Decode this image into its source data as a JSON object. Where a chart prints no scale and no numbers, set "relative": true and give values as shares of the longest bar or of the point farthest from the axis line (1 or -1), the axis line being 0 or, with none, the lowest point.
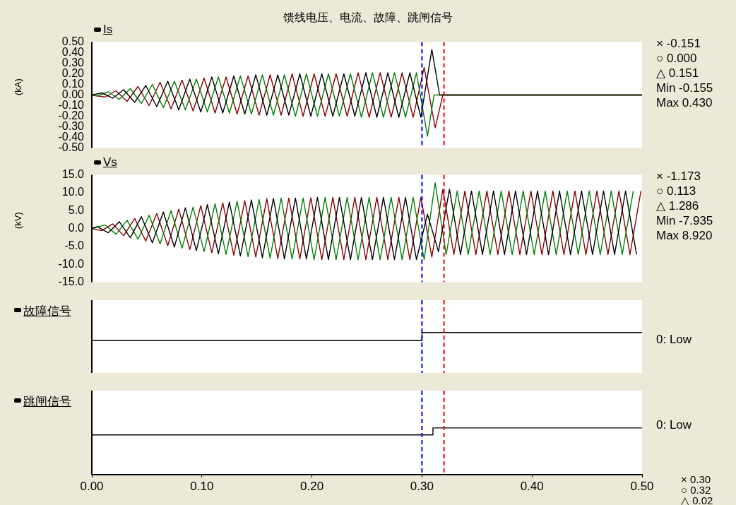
{
  "chart_data": [
    {
      "type": "line",
      "title": "馈线电压、电流、故障、跳闸信号",
      "subtitle": "Is",
      "ylabel": "(kA)",
      "marker": "none",
      "line_style": "solid",
      "grid": false,
      "legend": false,
      "tick_labels": "y",
      "xlim": [
        0,
        0.5
      ],
      "ylim": [
        -0.5,
        0.5
      ],
      "yticks": [
        {
          "value": 0.5,
          "label": "0.50"
        },
        {
          "value": 0.4,
          "label": "0.40"
        },
        {
          "value": 0.3,
          "label": "0.30"
        },
        {
          "value": 0.2,
          "label": "0.20"
        },
        {
          "value": 0.1,
          "label": "0.10"
        },
        {
          "value": 0,
          "label": "0.00"
        },
        {
          "value": -0.1,
          "label": "-0.10"
        },
        {
          "value": -0.2,
          "label": "-0.20"
        },
        {
          "value": -0.3,
          "label": "-0.30"
        },
        {
          "value": -0.4,
          "label": "-0.40"
        },
        {
          "value": -0.5,
          "label": "-0.50"
        }
      ],
      "series": [
        {
          "color": "#000000",
          "x": [
            0,
            0.009,
            0.019,
            0.029,
            0.039,
            0.049,
            0.059,
            0.069,
            0.079,
            0.089,
            0.099,
            0.109,
            0.119,
            0.129,
            0.139,
            0.149,
            0.159,
            0.169,
            0.179,
            0.189,
            0.199,
            0.209,
            0.219,
            0.229,
            0.239,
            0.249,
            0.259,
            0.269,
            0.279,
            0.289,
            0.299,
            0.309,
            0.316,
            0.5
          ],
          "values": [
            0,
            0.02,
            -0.03,
            0.05,
            -0.07,
            0.09,
            -0.11,
            0.13,
            -0.14,
            0.15,
            -0.16,
            0.17,
            -0.17,
            0.18,
            -0.18,
            0.19,
            -0.19,
            0.19,
            -0.19,
            0.2,
            -0.2,
            0.2,
            -0.2,
            0.2,
            -0.2,
            0.21,
            -0.21,
            0.21,
            -0.21,
            0.21,
            -0.21,
            0.43,
            0,
            0
          ]
        },
        {
          "color": "#008000",
          "x": [
            0,
            0.005,
            0.015,
            0.025,
            0.035,
            0.045,
            0.055,
            0.065,
            0.075,
            0.085,
            0.095,
            0.105,
            0.115,
            0.125,
            0.135,
            0.145,
            0.155,
            0.165,
            0.175,
            0.185,
            0.195,
            0.205,
            0.215,
            0.225,
            0.235,
            0.245,
            0.255,
            0.265,
            0.275,
            0.285,
            0.295,
            0.305,
            0.311,
            0.5
          ],
          "values": [
            0,
            -0.01,
            0.03,
            -0.04,
            0.06,
            -0.08,
            0.1,
            -0.12,
            0.13,
            -0.14,
            0.15,
            -0.16,
            0.17,
            -0.17,
            0.18,
            -0.18,
            0.19,
            -0.19,
            0.19,
            -0.2,
            0.2,
            -0.2,
            0.2,
            -0.2,
            0.2,
            -0.21,
            0.21,
            -0.21,
            0.21,
            -0.21,
            0.21,
            -0.39,
            0,
            0
          ]
        },
        {
          "color": "#8b0000",
          "x": [
            0,
            0.012,
            0.022,
            0.032,
            0.042,
            0.052,
            0.062,
            0.072,
            0.082,
            0.092,
            0.102,
            0.112,
            0.122,
            0.132,
            0.142,
            0.152,
            0.162,
            0.172,
            0.182,
            0.192,
            0.202,
            0.212,
            0.222,
            0.232,
            0.242,
            0.252,
            0.262,
            0.272,
            0.282,
            0.292,
            0.302,
            0.312,
            0.319,
            0.5
          ],
          "values": [
            0,
            -0.02,
            0.04,
            -0.06,
            0.08,
            -0.1,
            0.12,
            -0.13,
            0.14,
            -0.15,
            0.16,
            -0.17,
            0.17,
            -0.18,
            0.18,
            -0.19,
            0.19,
            -0.19,
            0.2,
            -0.2,
            0.2,
            -0.2,
            0.2,
            -0.2,
            0.21,
            -0.21,
            0.21,
            -0.21,
            0.21,
            -0.21,
            0.26,
            -0.31,
            0,
            0
          ]
        }
      ],
      "ref_lines": [
        {
          "axis": "x",
          "value": 0.3,
          "color": "#0000ff",
          "line_style": "dashed"
        },
        {
          "axis": "x",
          "value": 0.32,
          "color": "#ff0000",
          "line_style": "dashed"
        }
      ],
      "annotations": [
        "× -0.151",
        "○ 0.000",
        "△ 0.151",
        "Min -0.155",
        "Max 0.430"
      ]
    },
    {
      "type": "line",
      "subtitle": "Vs",
      "ylabel": "(kV)",
      "marker": "none",
      "line_style": "solid",
      "grid": false,
      "legend": false,
      "tick_labels": "y",
      "xlim": [
        0,
        0.5
      ],
      "ylim": [
        -15,
        15
      ],
      "yticks": [
        {
          "value": 15,
          "label": "15.0"
        },
        {
          "value": 10,
          "label": "10.0"
        },
        {
          "value": 5,
          "label": "5.0"
        },
        {
          "value": 0,
          "label": "0.0"
        },
        {
          "value": -5,
          "label": "-5.0"
        },
        {
          "value": -10,
          "label": "-10.0"
        },
        {
          "value": -15,
          "label": "-15.0"
        }
      ],
      "series": [
        {
          "color": "#000000",
          "x": [
            0,
            0.005,
            0.015,
            0.025,
            0.035,
            0.045,
            0.055,
            0.065,
            0.075,
            0.085,
            0.095,
            0.105,
            0.115,
            0.125,
            0.135,
            0.145,
            0.155,
            0.165,
            0.175,
            0.185,
            0.195,
            0.205,
            0.215,
            0.225,
            0.235,
            0.245,
            0.255,
            0.265,
            0.275,
            0.285,
            0.295,
            0.305,
            0.315,
            0.325,
            0.335,
            0.345,
            0.355,
            0.365,
            0.375,
            0.385,
            0.395,
            0.405,
            0.415,
            0.425,
            0.435,
            0.445,
            0.455,
            0.465,
            0.475,
            0.485,
            0.495
          ],
          "values": [
            0,
            0.5,
            -1.2,
            1.9,
            -2.6,
            3.3,
            -4,
            4.6,
            -5.2,
            5.8,
            -6.2,
            6.7,
            -7.1,
            7.4,
            -7.7,
            8,
            -8.2,
            8.4,
            -8.5,
            8.5,
            -8.5,
            8.7,
            -8.7,
            8.7,
            -8.7,
            8.7,
            -8.7,
            8.7,
            -8.7,
            8.7,
            -8.7,
            4,
            -6.5,
            11,
            -7.3,
            10.5,
            -7.3,
            10.5,
            -7.3,
            10.5,
            -7.3,
            10.5,
            -7.3,
            10.5,
            -7.3,
            10.5,
            -7.3,
            10.5,
            -7.3,
            10.5,
            -7.3
          ]
        },
        {
          "color": "#008000",
          "x": [
            0,
            0.012,
            0.022,
            0.032,
            0.042,
            0.052,
            0.062,
            0.072,
            0.082,
            0.092,
            0.102,
            0.112,
            0.122,
            0.132,
            0.142,
            0.152,
            0.162,
            0.172,
            0.182,
            0.192,
            0.202,
            0.212,
            0.222,
            0.232,
            0.242,
            0.252,
            0.262,
            0.272,
            0.282,
            0.292,
            0.302,
            0.312,
            0.322,
            0.332,
            0.342,
            0.352,
            0.362,
            0.372,
            0.382,
            0.392,
            0.402,
            0.412,
            0.422,
            0.432,
            0.442,
            0.452,
            0.462,
            0.472,
            0.482,
            0.492
          ],
          "values": [
            0,
            1,
            -1.6,
            2.3,
            -3,
            3.7,
            -4.3,
            5,
            -5.5,
            6,
            -6.5,
            6.9,
            -7.3,
            7.6,
            -7.9,
            8.1,
            -8.3,
            8.5,
            -8.5,
            8.5,
            -8.7,
            8.7,
            -8.7,
            8.7,
            -8.7,
            8.7,
            -8.7,
            8.7,
            -8.7,
            8.7,
            -8.7,
            12.8,
            -7.3,
            10.5,
            -7.3,
            10.5,
            -7.3,
            10.5,
            -7.3,
            10.5,
            -7.3,
            10.5,
            -7.3,
            10.5,
            -7.3,
            10.5,
            -7.3,
            10.5,
            -7.3,
            10.5
          ]
        },
        {
          "color": "#8b0000",
          "x": [
            0,
            0.009,
            0.019,
            0.029,
            0.039,
            0.049,
            0.059,
            0.069,
            0.079,
            0.089,
            0.099,
            0.109,
            0.119,
            0.129,
            0.139,
            0.149,
            0.159,
            0.169,
            0.179,
            0.189,
            0.199,
            0.209,
            0.219,
            0.229,
            0.239,
            0.249,
            0.259,
            0.269,
            0.279,
            0.289,
            0.299,
            0.309,
            0.319,
            0.329,
            0.339,
            0.349,
            0.359,
            0.369,
            0.379,
            0.389,
            0.399,
            0.409,
            0.419,
            0.429,
            0.439,
            0.449,
            0.459,
            0.469,
            0.479,
            0.489,
            0.499
          ],
          "values": [
            0,
            -0.6,
            1.3,
            -2,
            2.8,
            -3.5,
            4.2,
            -4.8,
            5.4,
            -5.9,
            6.4,
            -6.8,
            7.2,
            -7.5,
            7.8,
            -8,
            8.3,
            -8.4,
            8.5,
            -8.5,
            8.6,
            -8.7,
            8.7,
            -8.7,
            8.7,
            -8.7,
            8.7,
            -8.7,
            8.7,
            -8.7,
            8.7,
            -8,
            11,
            -7.3,
            10.5,
            -7.3,
            10.5,
            -7.3,
            10.5,
            -7.3,
            10.5,
            -7.3,
            10.5,
            -7.3,
            10.5,
            -7.3,
            10.5,
            -7.3,
            10.5,
            -7.3,
            10.5
          ]
        }
      ],
      "ref_lines": [
        {
          "axis": "x",
          "value": 0.3,
          "color": "#0000ff",
          "line_style": "dashed"
        },
        {
          "axis": "x",
          "value": 0.32,
          "color": "#ff0000",
          "line_style": "dashed"
        }
      ],
      "annotations": [
        "× -1.173",
        "○ 0.113",
        "△ 1.286",
        "Min -7.935",
        "Max 8.920"
      ]
    },
    {
      "type": "step",
      "subtitle": "故障信号",
      "relative": true,
      "marker": "none",
      "line_style": "solid",
      "grid": false,
      "legend": false,
      "tick_labels": false,
      "xlim": [
        0,
        0.5
      ],
      "series": [
        {
          "color": "#000000",
          "x": [
            0,
            0.3,
            0.5
          ],
          "values": [
            0.8,
            1,
            1
          ]
        }
      ],
      "ref_lines": [
        {
          "axis": "x",
          "value": 0.3,
          "color": "#0000ff",
          "line_style": "dashed"
        },
        {
          "axis": "x",
          "value": 0.32,
          "color": "#ff0000",
          "line_style": "dashed"
        }
      ],
      "annotations": [
        "0: Low"
      ]
    },
    {
      "type": "step",
      "subtitle": "跳闸信号",
      "relative": true,
      "marker": "none",
      "line_style": "solid",
      "grid": false,
      "legend": false,
      "tick_labels": "x",
      "xlim": [
        0,
        0.5
      ],
      "xticks": [
        {
          "value": 0,
          "label": "0.00"
        },
        {
          "value": 0.1,
          "label": "0.10"
        },
        {
          "value": 0.2,
          "label": "0.20"
        },
        {
          "value": 0.3,
          "label": "0.30"
        },
        {
          "value": 0.4,
          "label": "0.40"
        },
        {
          "value": 0.5,
          "label": "0.50"
        }
      ],
      "series": [
        {
          "color": "#000000",
          "x": [
            0,
            0.31,
            0.5
          ],
          "values": [
            0.85,
            1,
            1
          ]
        }
      ],
      "ref_lines": [
        {
          "axis": "x",
          "value": 0.3,
          "color": "#0000ff",
          "line_style": "dashed"
        },
        {
          "axis": "x",
          "value": 0.32,
          "color": "#ff0000",
          "line_style": "dashed"
        }
      ],
      "annotations": [
        "0: Low",
        "× 0.30",
        "○ 0.32",
        "△ 0.02"
      ]
    }
  ]
}
